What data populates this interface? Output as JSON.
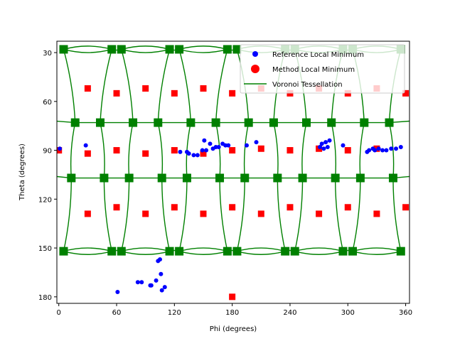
{
  "chart_data": {
    "type": "scatter",
    "xlabel": "Phi (degrees)",
    "ylabel": "Theta (degrees)",
    "xlim": [
      -2,
      364
    ],
    "ylim": [
      184,
      23
    ],
    "y_inverted": true,
    "grid": false,
    "legend_placement": "top-right",
    "x_ticks": [
      0,
      60,
      120,
      180,
      240,
      300,
      360
    ],
    "y_ticks": [
      30,
      60,
      90,
      120,
      150,
      180
    ],
    "legend": [
      "Reference Local Minimum",
      "Method Local Minimum",
      "Voronoi Tessellation"
    ],
    "colors": {
      "reference": "#0000ff",
      "method": "#ff0000",
      "voronoi": "#008000"
    },
    "series": [
      {
        "name": "Reference Local Minimum",
        "marker": "circle",
        "points": [
          [
            1,
            89
          ],
          [
            28,
            87
          ],
          [
            61,
            177
          ],
          [
            82,
            171
          ],
          [
            86,
            171
          ],
          [
            95,
            173
          ],
          [
            96,
            173
          ],
          [
            101,
            170
          ],
          [
            103,
            158
          ],
          [
            105,
            157
          ],
          [
            106,
            166
          ],
          [
            107,
            176
          ],
          [
            110,
            174
          ],
          [
            126,
            91
          ],
          [
            133,
            91
          ],
          [
            135,
            92
          ],
          [
            140,
            93
          ],
          [
            144,
            93
          ],
          [
            149,
            90
          ],
          [
            151,
            84
          ],
          [
            153,
            90
          ],
          [
            157,
            86
          ],
          [
            160,
            89
          ],
          [
            163,
            88
          ],
          [
            166,
            88
          ],
          [
            170,
            86
          ],
          [
            173,
            87
          ],
          [
            176,
            87
          ],
          [
            195,
            87
          ],
          [
            205,
            85
          ],
          [
            271,
            88
          ],
          [
            273,
            86
          ],
          [
            275,
            89
          ],
          [
            277,
            85
          ],
          [
            279,
            88
          ],
          [
            281,
            84
          ],
          [
            295,
            87
          ],
          [
            320,
            91
          ],
          [
            322,
            90
          ],
          [
            326,
            89
          ],
          [
            328,
            90
          ],
          [
            332,
            89
          ],
          [
            336,
            90
          ],
          [
            340,
            90
          ],
          [
            345,
            89
          ],
          [
            350,
            89
          ],
          [
            355,
            88
          ]
        ]
      },
      {
        "name": "Method Local Minimum",
        "marker": "square",
        "points": [
          [
            0,
            90
          ],
          [
            30,
            52
          ],
          [
            30,
            92
          ],
          [
            30,
            129
          ],
          [
            60,
            55
          ],
          [
            60,
            90
          ],
          [
            60,
            125
          ],
          [
            90,
            52
          ],
          [
            90,
            92
          ],
          [
            90,
            129
          ],
          [
            120,
            55
          ],
          [
            120,
            90
          ],
          [
            120,
            125
          ],
          [
            150,
            52
          ],
          [
            150,
            92
          ],
          [
            150,
            129
          ],
          [
            180,
            55
          ],
          [
            180,
            90
          ],
          [
            180,
            125
          ],
          [
            180,
            180
          ],
          [
            210,
            52
          ],
          [
            210,
            89
          ],
          [
            210,
            129
          ],
          [
            240,
            55
          ],
          [
            240,
            90
          ],
          [
            240,
            125
          ],
          [
            270,
            52
          ],
          [
            270,
            89
          ],
          [
            270,
            129
          ],
          [
            300,
            55
          ],
          [
            300,
            90
          ],
          [
            300,
            125
          ],
          [
            330,
            52
          ],
          [
            330,
            89
          ],
          [
            330,
            129
          ],
          [
            360,
            55
          ],
          [
            360,
            125
          ]
        ]
      },
      {
        "name": "Voronoi Tessellation",
        "marker": "square",
        "vertex_rows": [
          {
            "theta": 28,
            "phi": [
              5,
              55,
              65,
              115,
              125,
              175,
              185,
              235,
              245,
              295,
              305,
              355
            ]
          },
          {
            "theta": 73,
            "phi": [
              17,
              43,
              77,
              103,
              137,
              163,
              197,
              223,
              257,
              283,
              317,
              343
            ]
          },
          {
            "theta": 107,
            "phi": [
              13,
              47,
              73,
              107,
              133,
              167,
              193,
              227,
              253,
              287,
              313,
              347
            ]
          },
          {
            "theta": 152,
            "phi": [
              5,
              55,
              65,
              115,
              125,
              175,
              185,
              235,
              245,
              295,
              305,
              355
            ]
          }
        ]
      }
    ]
  }
}
